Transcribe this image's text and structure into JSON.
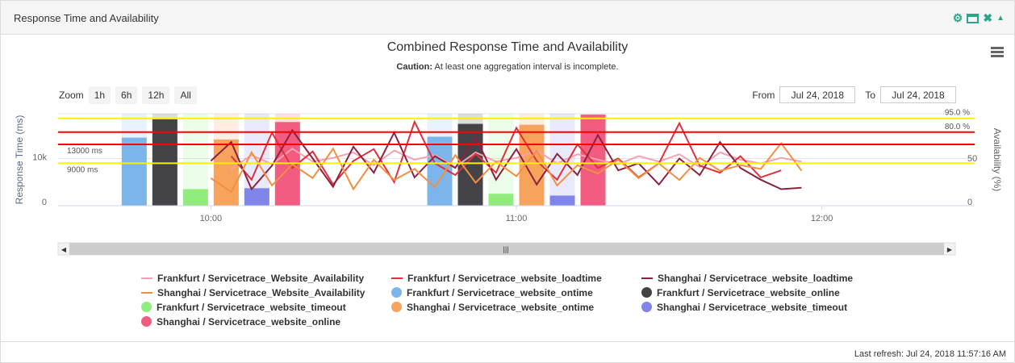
{
  "panel": {
    "title": "Response Time and Availability",
    "icons": [
      "gear-icon",
      "window-icon",
      "close-icon",
      "collapse-icon"
    ]
  },
  "chart_title": "Combined Response Time and Availability",
  "caution": {
    "label": "Caution:",
    "text": " At least one aggregation interval is incomplete."
  },
  "zoom": {
    "label": "Zoom",
    "buttons": [
      "1h",
      "6h",
      "12h",
      "All"
    ]
  },
  "range": {
    "from_label": "From",
    "from": "Jul 24, 2018",
    "to_label": "To",
    "to": "Jul 24, 2018"
  },
  "footer": "Last refresh: Jul 24, 2018 11:57:16 AM",
  "chart_data": {
    "type": "combo",
    "title": "Combined Response Time and Availability",
    "xlabel": "",
    "ylabel_left": "Response Time (ms)",
    "ylabel_right": "Availability (%)",
    "xlim": [
      "09:30",
      "12:30"
    ],
    "ylim_left": [
      0,
      19500
    ],
    "ylim_right": [
      0,
      100
    ],
    "x_ticks": [
      "10:00",
      "11:00",
      "12:00"
    ],
    "y_ticks_left": [
      "0",
      "10k"
    ],
    "y_ticks_right": [
      "0",
      "50"
    ],
    "plot_lines": [
      {
        "axis": "right",
        "value": 95,
        "label": "95.0 %",
        "color": "#ffee00"
      },
      {
        "axis": "right",
        "value": 80,
        "label": "80.0 %",
        "color": "#ff0000"
      },
      {
        "axis": "left",
        "value": 13000,
        "label": "13000 ms",
        "color": "#ff0000"
      },
      {
        "axis": "left",
        "value": 9000,
        "label": "9000 ms",
        "color": "#ffee00"
      }
    ],
    "bar_categories": [
      "10:00",
      "11:00"
    ],
    "bar_series": [
      {
        "name": "Frankfurt / Servicetrace_website_ontime",
        "color": "#7cb5ec",
        "values": [
          74,
          75
        ]
      },
      {
        "name": "Frankfurt / Servicetrace_website_online",
        "color": "#434348",
        "values": [
          94,
          89
        ]
      },
      {
        "name": "Frankfurt / Servicetrace_website_timeout",
        "color": "#90ed7d",
        "values": [
          18,
          13
        ]
      },
      {
        "name": "Shanghai / Servicetrace_website_ontime",
        "color": "#f7a35c",
        "values": [
          72,
          88
        ]
      },
      {
        "name": "Shanghai / Servicetrace_website_timeout",
        "color": "#8085e9",
        "values": [
          19,
          11
        ]
      },
      {
        "name": "Shanghai / Servicetrace_website_online",
        "color": "#f15c80",
        "values": [
          91,
          99
        ]
      }
    ],
    "x": [
      "10:00",
      "10:04",
      "10:08",
      "10:12",
      "10:16",
      "10:20",
      "10:24",
      "10:28",
      "10:32",
      "10:36",
      "10:40",
      "10:44",
      "10:48",
      "10:52",
      "10:56",
      "11:00",
      "11:04",
      "11:08",
      "11:12",
      "11:16",
      "11:20",
      "11:24",
      "11:28",
      "11:32",
      "11:36",
      "11:40",
      "11:44",
      "11:48",
      "11:52",
      "11:56"
    ],
    "line_series": [
      {
        "name": "Frankfurt / Servicetrace_Website_Availability",
        "axis": "right",
        "color": "#f7a1b0",
        "values": [
          null,
          40,
          55,
          45,
          62,
          48,
          52,
          58,
          44,
          60,
          50,
          55,
          42,
          58,
          48,
          52,
          60,
          46,
          56,
          50,
          45,
          54,
          48,
          56,
          42,
          58,
          50,
          46,
          52,
          48
        ]
      },
      {
        "name": "Frankfurt / Servicetrace_website_loadtime",
        "axis": "left",
        "color": "#e0303c",
        "values": [
          null,
          10500,
          5500,
          15500,
          8000,
          11500,
          4500,
          9500,
          12000,
          5000,
          17800,
          9000,
          6500,
          11000,
          7000,
          16500,
          9500,
          5500,
          13000,
          8000,
          10000,
          6000,
          9000,
          17500,
          8500,
          7000,
          10500,
          6000,
          7500,
          null
        ]
      },
      {
        "name": "Shanghai / Servicetrace_website_loadtime",
        "axis": "left",
        "color": "#8b2340",
        "values": [
          9500,
          13500,
          3500,
          8500,
          16000,
          10000,
          4000,
          12500,
          7000,
          15500,
          6000,
          10500,
          8000,
          14500,
          5500,
          12000,
          4500,
          11000,
          6500,
          15000,
          7500,
          9000,
          4500,
          10000,
          6500,
          13500,
          8000,
          5500,
          3500,
          3800
        ]
      },
      {
        "name": "Shanghai / Servicetrace_Website_Availability",
        "axis": "right",
        "color": "#f28f43",
        "values": [
          30,
          15,
          58,
          22,
          45,
          30,
          62,
          18,
          50,
          28,
          40,
          20,
          55,
          25,
          48,
          32,
          60,
          22,
          44,
          35,
          50,
          30,
          46,
          28,
          52,
          38,
          44,
          40,
          68,
          38
        ]
      }
    ]
  }
}
